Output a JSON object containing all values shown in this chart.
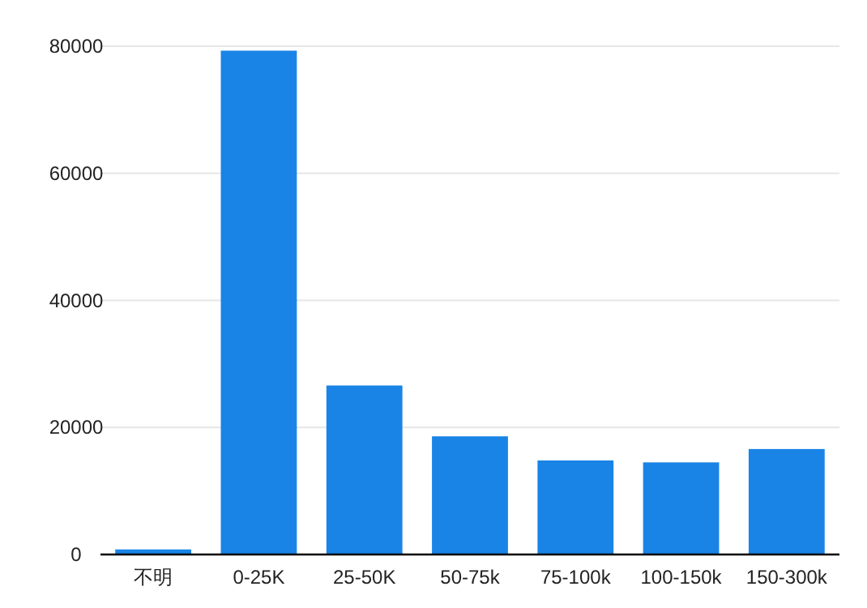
{
  "chart_data": {
    "type": "bar",
    "categories": [
      "不明",
      "0-25K",
      "25-50K",
      "50-75k",
      "75-100k",
      "100-150k",
      "150-300k"
    ],
    "values": [
      800,
      79300,
      26600,
      18600,
      14800,
      14500,
      16600
    ],
    "color": "#1a84e6",
    "ylim": [
      0,
      80000
    ],
    "yticks": [
      0,
      20000,
      40000,
      60000,
      80000
    ],
    "grid": "y"
  }
}
